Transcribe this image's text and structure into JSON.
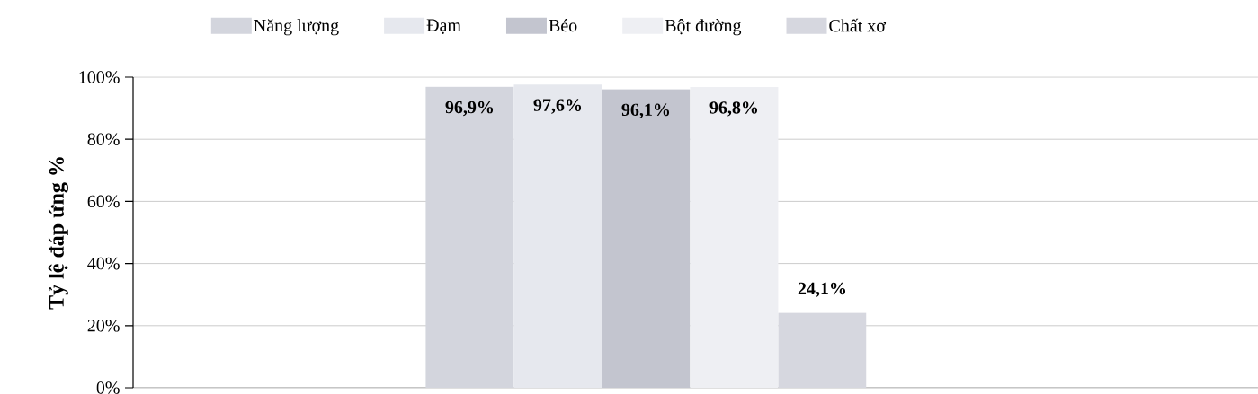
{
  "chart_data": {
    "type": "bar",
    "ylabel": "Tỷ lệ đáp ứng %",
    "categories": [
      null
    ],
    "series": [
      {
        "name": "Năng lượng",
        "color": "#d3d5dd",
        "values": [
          96.9
        ],
        "value_labels": [
          "96,9%"
        ]
      },
      {
        "name": "Đạm",
        "color": "#e6e8ee",
        "values": [
          97.6
        ],
        "value_labels": [
          "97,6%"
        ]
      },
      {
        "name": "Béo",
        "color": "#c3c5cf",
        "values": [
          96.1
        ],
        "value_labels": [
          "96,1%"
        ]
      },
      {
        "name": "Bột đường",
        "color": "#eeeff3",
        "values": [
          96.8
        ],
        "value_labels": [
          "96,8%"
        ]
      },
      {
        "name": "Chất xơ",
        "color": "#d6d7df",
        "values": [
          24.1
        ],
        "value_labels": [
          "24,1%"
        ]
      }
    ],
    "ylim": [
      0,
      100
    ],
    "yticks": [
      {
        "value": 0,
        "label": "0%"
      },
      {
        "value": 20,
        "label": "20%"
      },
      {
        "value": 40,
        "label": "40%"
      },
      {
        "value": 60,
        "label": "60%"
      },
      {
        "value": 80,
        "label": "80%"
      },
      {
        "value": 100,
        "label": "100%"
      }
    ],
    "grid": "y",
    "legend": "top"
  }
}
